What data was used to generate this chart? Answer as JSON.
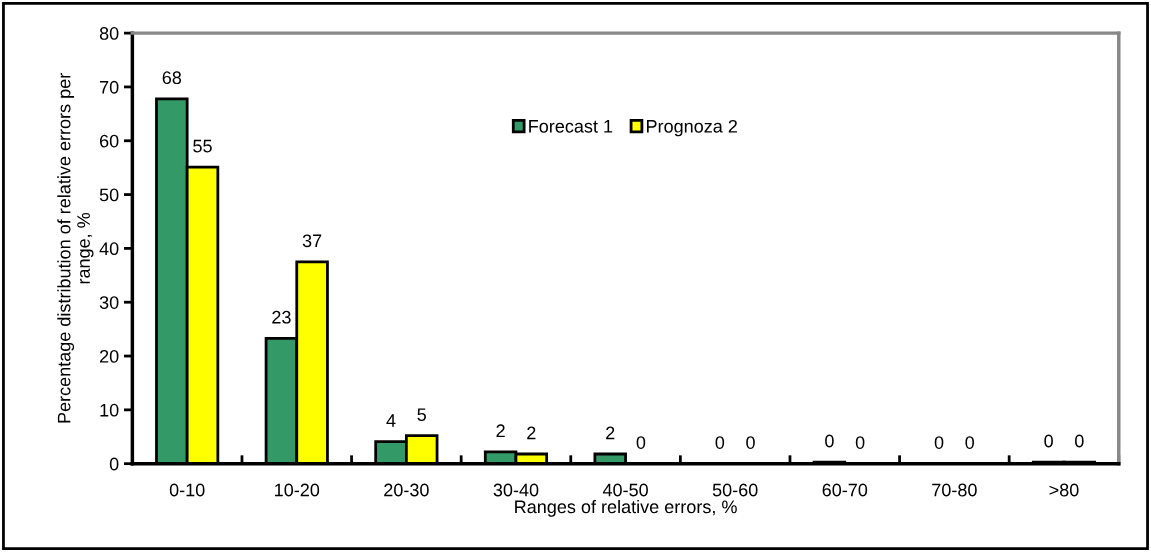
{
  "chart_data": {
    "type": "bar",
    "xlabel": "Ranges of relative errors, %",
    "ylabel": "Percentage distribution of relative errors per\nrange, %",
    "categories": [
      "0-10",
      "10-20",
      "20-30",
      "30-40",
      "40-50",
      "50-60",
      "60-70",
      "70-80",
      ">80"
    ],
    "series": [
      {
        "name": "Forecast 1",
        "color": "#339966",
        "values": [
          67.8,
          23.3,
          4.1,
          2.2,
          1.8,
          0,
          0.3,
          0,
          0.3
        ],
        "value_labels": [
          "68",
          "23",
          "4",
          "2",
          "2",
          "0",
          "0",
          "0",
          "0"
        ]
      },
      {
        "name": "Prognoza 2",
        "color": "#ffff00",
        "values": [
          55.1,
          37.5,
          5.2,
          1.8,
          0,
          0,
          0,
          0,
          0.3
        ],
        "value_labels": [
          "55",
          "37",
          "5",
          "2",
          "0",
          "0",
          "0",
          "0",
          "0"
        ]
      }
    ],
    "ylim": [
      0,
      80
    ],
    "yticks": [
      0,
      10,
      20,
      30,
      40,
      50,
      60,
      70,
      80
    ],
    "grid": false,
    "legend": "top"
  }
}
